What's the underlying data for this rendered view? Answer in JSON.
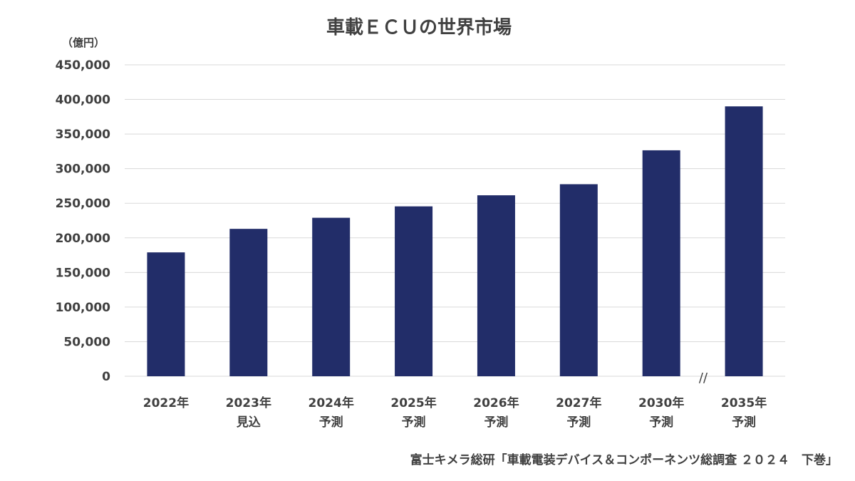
{
  "chart_data": {
    "type": "bar",
    "title": "車載ＥＣＵの世界市場",
    "unit_label": "（億円）",
    "categories": [
      [
        "2022年"
      ],
      [
        "2023年",
        "見込"
      ],
      [
        "2024年",
        "予測"
      ],
      [
        "2025年",
        "予測"
      ],
      [
        "2026年",
        "予測"
      ],
      [
        "2027年",
        "予測"
      ],
      [
        "2030年",
        "予測"
      ],
      [
        "2035年",
        "予測"
      ]
    ],
    "values": [
      179000,
      213000,
      229000,
      245500,
      261500,
      277500,
      326500,
      390000
    ],
    "ylim": [
      0,
      450000
    ],
    "yticks": [
      0,
      50000,
      100000,
      150000,
      200000,
      250000,
      300000,
      350000,
      400000,
      450000
    ],
    "ytick_labels": [
      "0",
      "50,000",
      "100,000",
      "150,000",
      "200,000",
      "250,000",
      "300,000",
      "350,000",
      "400,000",
      "450,000"
    ],
    "grid": true,
    "axis_break_mark": "//",
    "bar_color": "#222d69",
    "source": "富士キメラ総研「車載電装デバイス＆コンポーネンツ総調査 ２０２４　下巻」"
  }
}
